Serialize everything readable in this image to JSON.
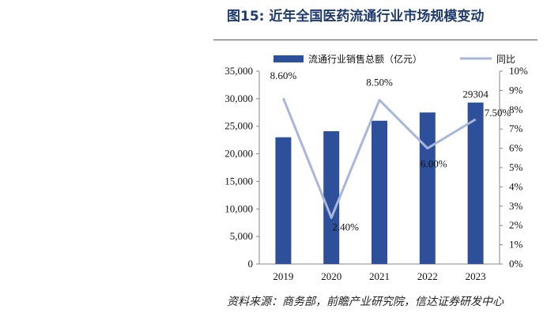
{
  "title": "图15: 近年全国医药流通行业市场规模变动",
  "source": "资料来源：商务部，前瞻产业研究院，信达证券研发中心",
  "colors": {
    "bar": "#2e4f9a",
    "line": "#a9b6dc",
    "title": "#1f3a6e"
  },
  "chart_data": {
    "type": "bar",
    "categories": [
      "2019",
      "2020",
      "2021",
      "2022",
      "2023"
    ],
    "series": [
      {
        "name": "流通行业销售总额（亿元）",
        "type": "bar",
        "axis": "left",
        "values": [
          23000,
          24100,
          26000,
          27500,
          29304
        ]
      },
      {
        "name": "同比",
        "type": "line",
        "axis": "right",
        "values": [
          8.6,
          2.4,
          8.5,
          6.0,
          7.5
        ]
      }
    ],
    "bar_labels": [
      "",
      "",
      "",
      "",
      "29304"
    ],
    "line_labels": [
      "8.60%",
      "2.40%",
      "8.50%",
      "6.00%",
      "7.50%"
    ],
    "ylim": [
      0,
      35000
    ],
    "y_ticks": [
      "0",
      "5,000",
      "10,000",
      "15,000",
      "20,000",
      "25,000",
      "30,000",
      "35,000"
    ],
    "y2lim": [
      0,
      10
    ],
    "y2_ticks": [
      "0%",
      "1%",
      "2%",
      "3%",
      "4%",
      "5%",
      "6%",
      "7%",
      "8%",
      "9%",
      "10%"
    ],
    "legend_position": "top",
    "grid": false
  }
}
